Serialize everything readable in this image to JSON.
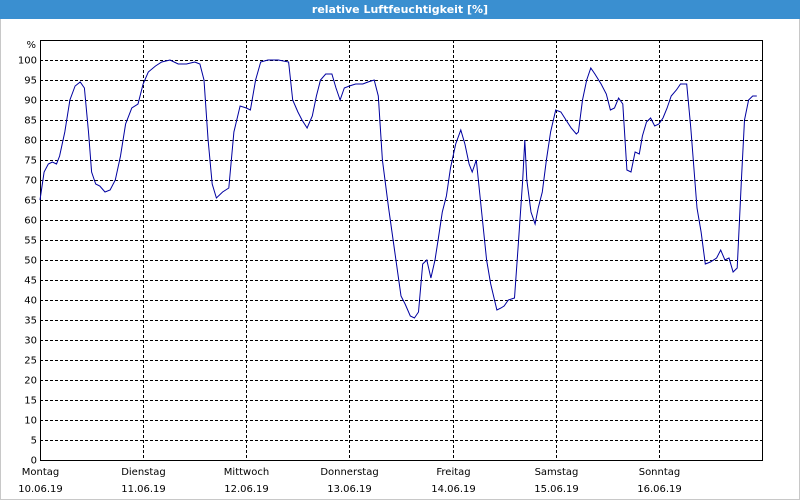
{
  "chart_data": {
    "type": "line",
    "title": "relative Luftfeuchtigkeit [%]",
    "y_label": "%",
    "xlim": [
      0,
      7
    ],
    "ylim": [
      0,
      105
    ],
    "xticks": [
      {
        "value": 0,
        "label": [
          "Montag",
          "10.06.19"
        ]
      },
      {
        "value": 1,
        "label": [
          "Dienstag",
          "11.06.19"
        ]
      },
      {
        "value": 2,
        "label": [
          "Mittwoch",
          "12.06.19"
        ]
      },
      {
        "value": 3,
        "label": [
          "Donnerstag",
          "13.06.19"
        ]
      },
      {
        "value": 4,
        "label": [
          "Freitag",
          "14.06.19"
        ]
      },
      {
        "value": 5,
        "label": [
          "Samstag",
          "15.06.19"
        ]
      },
      {
        "value": 6,
        "label": [
          "Sonntag",
          "16.06.19"
        ]
      }
    ],
    "yticks": [
      0,
      5,
      10,
      15,
      20,
      25,
      30,
      35,
      40,
      45,
      50,
      55,
      60,
      65,
      70,
      75,
      80,
      85,
      90,
      95,
      100
    ],
    "grid": true,
    "series": [
      {
        "name": "relative Luftfeuchtigkeit",
        "color": "#0000a0",
        "x": [
          0,
          0.04,
          0.08,
          0.12,
          0.16,
          0.19,
          0.24,
          0.29,
          0.34,
          0.39,
          0.43,
          0.47,
          0.5,
          0.54,
          0.58,
          0.63,
          0.68,
          0.73,
          0.78,
          0.83,
          0.89,
          0.95,
          1.0,
          1.05,
          1.12,
          1.18,
          1.26,
          1.34,
          1.42,
          1.5,
          1.55,
          1.59,
          1.63,
          1.67,
          1.71,
          1.77,
          1.83,
          1.88,
          1.94,
          2.0,
          2.04,
          2.09,
          2.14,
          2.21,
          2.31,
          2.41,
          2.45,
          2.5,
          2.54,
          2.59,
          2.64,
          2.68,
          2.72,
          2.77,
          2.83,
          2.87,
          2.91,
          2.95,
          3.0,
          3.06,
          3.13,
          3.18,
          3.24,
          3.28,
          3.32,
          3.38,
          3.44,
          3.5,
          3.54,
          3.59,
          3.63,
          3.67,
          3.71,
          3.75,
          3.79,
          3.83,
          3.86,
          3.9,
          3.94,
          3.98,
          4.03,
          4.08,
          4.12,
          4.16,
          4.19,
          4.23,
          4.27,
          4.33,
          4.37,
          4.43,
          4.47,
          4.5,
          4.54,
          4.6,
          4.64,
          4.68,
          4.7,
          4.72,
          4.76,
          4.8,
          4.83,
          4.87,
          4.91,
          4.95,
          5.0,
          5.05,
          5.1,
          5.15,
          5.2,
          5.22,
          5.26,
          5.3,
          5.34,
          5.38,
          5.44,
          5.49,
          5.53,
          5.57,
          5.61,
          5.65,
          5.69,
          5.73,
          5.77,
          5.81,
          5.84,
          5.88,
          5.92,
          5.96,
          6.0,
          6.04,
          6.08,
          6.12,
          6.17,
          6.21,
          6.27,
          6.31,
          6.37,
          6.41,
          6.45,
          6.5,
          6.56,
          6.6,
          6.64,
          6.68,
          6.72,
          6.76,
          6.8,
          6.83,
          6.87,
          6.91,
          6.95
        ],
        "values": [
          65,
          72,
          74,
          74.5,
          74,
          76,
          82,
          90,
          93.5,
          94.5,
          93,
          82,
          72,
          69,
          68.5,
          67,
          67.5,
          70,
          76,
          84,
          88,
          89,
          94,
          97,
          98.5,
          99.5,
          100,
          99,
          99,
          99.5,
          99,
          95,
          80,
          69,
          65.5,
          67,
          68,
          82,
          88.5,
          88,
          87.5,
          95,
          99.5,
          100,
          100,
          99.5,
          90,
          87,
          85,
          83,
          86,
          91,
          95,
          96.5,
          96.5,
          93,
          90,
          93,
          93.5,
          94,
          94,
          94.5,
          95,
          91,
          75,
          63,
          52,
          41,
          39,
          36,
          35.5,
          37,
          49,
          50,
          45.5,
          50,
          55,
          62,
          66,
          73,
          79,
          82.5,
          79,
          74,
          72,
          75,
          65,
          50,
          44,
          37.5,
          38,
          38.5,
          40,
          40.5,
          55,
          70,
          80,
          70,
          62,
          59,
          63,
          67,
          75,
          82,
          87.5,
          87,
          85,
          83,
          81.5,
          82,
          90,
          95,
          98,
          96.5,
          94,
          91.5,
          87.5,
          88,
          90.5,
          89,
          72.5,
          72,
          77,
          76.5,
          81,
          84.5,
          85.5,
          83.5,
          84,
          85.5,
          88,
          91,
          92.5,
          94,
          94,
          83,
          63,
          57,
          49,
          49.5,
          50.5,
          52.5,
          50,
          50.5,
          47,
          48,
          70,
          85,
          90,
          91,
          91
        ]
      }
    ]
  }
}
